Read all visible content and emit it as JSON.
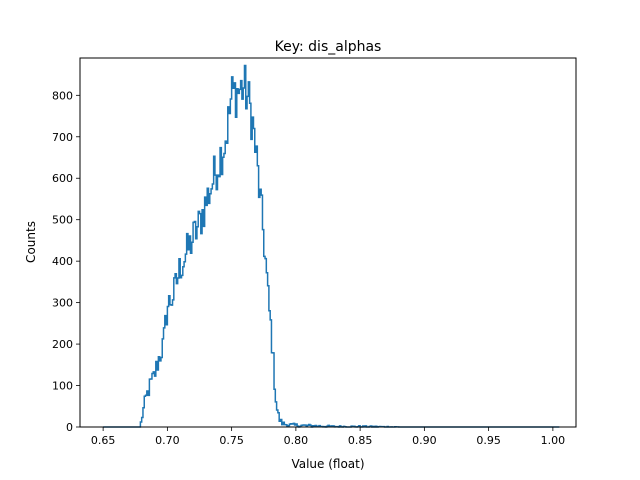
{
  "chart_data": {
    "type": "step-histogram",
    "title": "Key: dis_alphas",
    "xlabel": "Value (float)",
    "ylabel": "Counts",
    "xlim": [
      0.632,
      1.018
    ],
    "ylim": [
      0,
      890
    ],
    "grid": false,
    "legend": "none",
    "line_color": "#1f77b4",
    "x_ticks": [
      0.65,
      0.7,
      0.75,
      0.8,
      0.85,
      0.9,
      0.95,
      1.0
    ],
    "x_tick_labels": [
      "0.65",
      "0.70",
      "0.75",
      "0.80",
      "0.85",
      "0.90",
      "0.95",
      "1.00"
    ],
    "y_ticks": [
      0,
      100,
      200,
      300,
      400,
      500,
      600,
      700,
      800
    ],
    "y_tick_labels": [
      "0",
      "100",
      "200",
      "300",
      "400",
      "500",
      "600",
      "700",
      "800"
    ],
    "bin_edges_range": [
      0.65,
      1.005
    ],
    "bin_count": 355,
    "profile_x": [
      0.65,
      0.679,
      0.68,
      0.683,
      0.686,
      0.69,
      0.693,
      0.697,
      0.7,
      0.705,
      0.71,
      0.715,
      0.72,
      0.725,
      0.73,
      0.735,
      0.74,
      0.745,
      0.748,
      0.75,
      0.755,
      0.76,
      0.763,
      0.766,
      0.769,
      0.772,
      0.775,
      0.777,
      0.779,
      0.781,
      0.783,
      0.785,
      0.787,
      0.789,
      0.791,
      0.795,
      0.8,
      0.81,
      0.82,
      0.83,
      0.85,
      0.88,
      1.005
    ],
    "profile_counts": [
      0,
      0,
      20,
      65,
      95,
      125,
      160,
      200,
      290,
      320,
      385,
      420,
      455,
      490,
      540,
      590,
      640,
      690,
      745,
      800,
      810,
      820,
      790,
      745,
      660,
      560,
      460,
      380,
      290,
      230,
      130,
      50,
      20,
      10,
      7,
      5,
      4,
      3,
      2,
      1,
      1,
      0,
      0
    ]
  }
}
